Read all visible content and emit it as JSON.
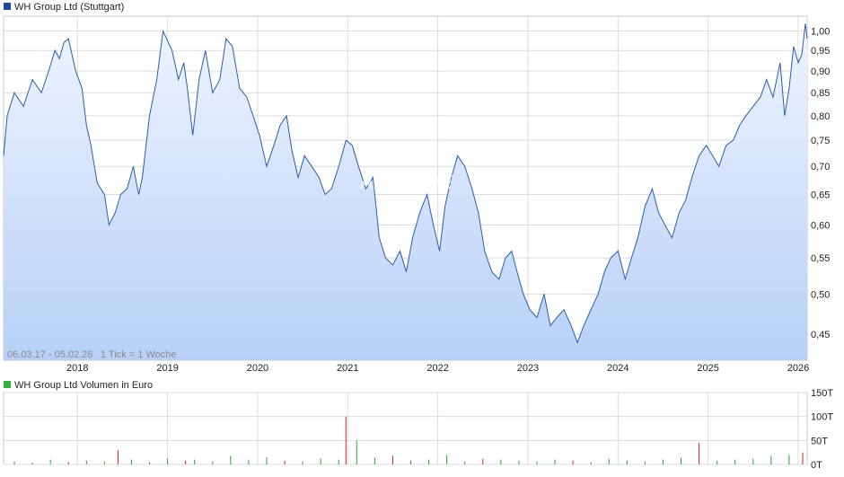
{
  "colors": {
    "price_line": "#2a5caa",
    "area_top": "#eef4ff",
    "area_bottom": "#b8d0f7",
    "grid": "#dcdcdc",
    "axis_text": "#222222",
    "volume_up": "#2ca02c",
    "volume_down": "#cc2222",
    "legend_price_square": "#1f4d9c",
    "legend_volume_square": "#3cb043",
    "watermark": "#ffffff"
  },
  "price_legend": "WH Group Ltd (Stuttgart)",
  "volume_legend": "WH Group Ltd Volumen in Euro",
  "range_note": "06.03.17 - 05.02.26",
  "tick_note": "1 Tick = 1 Woche",
  "watermark": "ARIVA.DE",
  "chart_data": [
    {
      "type": "area",
      "title": "WH Group Ltd (Stuttgart)",
      "x_tick_labels": [
        "2018",
        "2019",
        "2020",
        "2021",
        "2022",
        "2023",
        "2024",
        "2025",
        "2026"
      ],
      "y_tick_labels": [
        "1,00",
        "0,95",
        "0,90",
        "0,85",
        "0,80",
        "0,75",
        "0,70",
        "0,65",
        "0,60",
        "0,55",
        "0,50",
        "0,45"
      ],
      "y_ticks": [
        1.0,
        0.95,
        0.9,
        0.85,
        0.8,
        0.75,
        0.7,
        0.65,
        0.6,
        0.55,
        0.5,
        0.45
      ],
      "y_scale": "log",
      "ylim": [
        0.42,
        1.04
      ],
      "xlim": [
        2017.18,
        2026.1
      ],
      "grid": true,
      "series": [
        {
          "x": [
            2017.18,
            2017.22,
            2017.3,
            2017.4,
            2017.5,
            2017.6,
            2017.68,
            2017.75,
            2017.8,
            2017.85,
            2017.9,
            2017.98,
            2018.05,
            2018.1,
            2018.15,
            2018.22,
            2018.3,
            2018.35,
            2018.42,
            2018.48,
            2018.55,
            2018.62,
            2018.68,
            2018.72,
            2018.8,
            2018.88,
            2018.95,
            2019.05,
            2019.12,
            2019.18,
            2019.22,
            2019.28,
            2019.35,
            2019.42,
            2019.5,
            2019.58,
            2019.65,
            2019.72,
            2019.8,
            2019.88,
            2019.95,
            2020.02,
            2020.1,
            2020.18,
            2020.25,
            2020.32,
            2020.38,
            2020.45,
            2020.52,
            2020.6,
            2020.68,
            2020.75,
            2020.82,
            2020.9,
            2020.98,
            2021.05,
            2021.12,
            2021.2,
            2021.28,
            2021.35,
            2021.42,
            2021.5,
            2021.58,
            2021.65,
            2021.72,
            2021.8,
            2021.88,
            2021.95,
            2022.02,
            2022.08,
            2022.15,
            2022.22,
            2022.3,
            2022.38,
            2022.45,
            2022.52,
            2022.6,
            2022.68,
            2022.75,
            2022.82,
            2022.88,
            2022.95,
            2023.02,
            2023.1,
            2023.18,
            2023.25,
            2023.32,
            2023.4,
            2023.48,
            2023.55,
            2023.62,
            2023.7,
            2023.78,
            2023.85,
            2023.92,
            2024.0,
            2024.08,
            2024.15,
            2024.22,
            2024.3,
            2024.38,
            2024.45,
            2024.52,
            2024.6,
            2024.68,
            2024.75,
            2024.82,
            2024.9,
            2024.98,
            2025.05,
            2025.12,
            2025.2,
            2025.28,
            2025.35,
            2025.42,
            2025.5,
            2025.58,
            2025.65,
            2025.72,
            2025.8,
            2025.85,
            2025.9,
            2025.95,
            2026.0,
            2026.04,
            2026.08,
            2026.1
          ],
          "y": [
            0.72,
            0.8,
            0.85,
            0.82,
            0.88,
            0.85,
            0.9,
            0.95,
            0.93,
            0.97,
            0.98,
            0.9,
            0.86,
            0.78,
            0.74,
            0.67,
            0.65,
            0.6,
            0.62,
            0.65,
            0.66,
            0.7,
            0.65,
            0.68,
            0.8,
            0.88,
            1.0,
            0.95,
            0.88,
            0.92,
            0.86,
            0.76,
            0.88,
            0.95,
            0.85,
            0.88,
            0.98,
            0.96,
            0.86,
            0.84,
            0.8,
            0.76,
            0.7,
            0.74,
            0.78,
            0.8,
            0.73,
            0.68,
            0.72,
            0.7,
            0.68,
            0.65,
            0.66,
            0.7,
            0.75,
            0.74,
            0.7,
            0.66,
            0.68,
            0.58,
            0.55,
            0.54,
            0.56,
            0.53,
            0.58,
            0.62,
            0.65,
            0.6,
            0.56,
            0.63,
            0.68,
            0.72,
            0.7,
            0.66,
            0.62,
            0.56,
            0.53,
            0.52,
            0.55,
            0.56,
            0.53,
            0.5,
            0.48,
            0.47,
            0.5,
            0.46,
            0.47,
            0.48,
            0.46,
            0.44,
            0.46,
            0.48,
            0.5,
            0.53,
            0.55,
            0.56,
            0.52,
            0.55,
            0.58,
            0.63,
            0.66,
            0.62,
            0.6,
            0.58,
            0.62,
            0.64,
            0.68,
            0.72,
            0.74,
            0.72,
            0.7,
            0.74,
            0.75,
            0.78,
            0.8,
            0.82,
            0.84,
            0.88,
            0.84,
            0.92,
            0.8,
            0.86,
            0.96,
            0.92,
            0.94,
            1.02,
            0.98
          ]
        }
      ]
    },
    {
      "type": "bar",
      "title": "WH Group Ltd Volumen in Euro",
      "y_tick_labels": [
        "150T",
        "100T",
        "50T",
        "0T"
      ],
      "y_ticks": [
        150,
        100,
        50,
        0
      ],
      "ylim": [
        0,
        150
      ],
      "x_tick_labels": [
        "2018",
        "2019",
        "2020",
        "2021",
        "2022",
        "2023",
        "2024",
        "2025",
        "2026"
      ],
      "series": [
        {
          "name": "WH Group Ltd Volumen in Euro",
          "x": [
            2017.3,
            2017.5,
            2017.7,
            2017.9,
            2018.1,
            2018.3,
            2018.45,
            2018.6,
            2018.8,
            2019.0,
            2019.2,
            2019.3,
            2019.5,
            2019.7,
            2019.9,
            2020.1,
            2020.3,
            2020.5,
            2020.7,
            2020.9,
            2020.98,
            2021.1,
            2021.3,
            2021.5,
            2021.7,
            2021.9,
            2022.1,
            2022.3,
            2022.5,
            2022.7,
            2022.9,
            2023.1,
            2023.3,
            2023.5,
            2023.7,
            2023.9,
            2024.1,
            2024.3,
            2024.5,
            2024.7,
            2024.9,
            2025.1,
            2025.3,
            2025.5,
            2025.7,
            2025.9,
            2026.05
          ],
          "values": [
            6,
            4,
            10,
            5,
            8,
            6,
            30,
            10,
            5,
            12,
            8,
            10,
            6,
            18,
            10,
            15,
            8,
            6,
            12,
            10,
            100,
            50,
            14,
            18,
            8,
            10,
            20,
            6,
            12,
            10,
            8,
            6,
            10,
            8,
            5,
            12,
            8,
            6,
            10,
            14,
            45,
            8,
            10,
            12,
            18,
            20,
            25
          ],
          "colors": [
            "up",
            "up",
            "up",
            "down",
            "up",
            "up",
            "down",
            "up",
            "up",
            "up",
            "down",
            "up",
            "up",
            "up",
            "up",
            "up",
            "down",
            "up",
            "up",
            "up",
            "down",
            "up",
            "up",
            "down",
            "up",
            "up",
            "up",
            "up",
            "down",
            "up",
            "up",
            "up",
            "up",
            "down",
            "up",
            "up",
            "up",
            "up",
            "up",
            "up",
            "down",
            "up",
            "up",
            "up",
            "up",
            "up",
            "down"
          ]
        }
      ]
    }
  ]
}
